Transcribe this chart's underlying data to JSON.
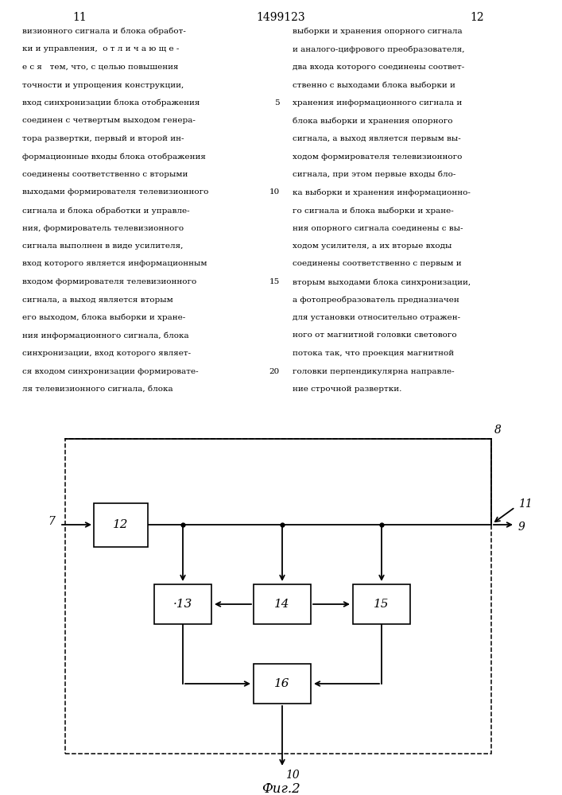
{
  "page_number_center": "1499123",
  "page_number_left": "11",
  "page_number_right": "12",
  "text_left": [
    "визионного сигнала и блока обработ-",
    "ки и управления,  о т л и ч а ю щ е -",
    "е с я   тем, что, с целью повышения",
    "точности и упрощения конструкции,",
    "вход синхронизации блока отображения",
    "соединен с четвертым выходом генера-",
    "тора развертки, первый и второй ин-",
    "формационные входы блока отображения",
    "соединены соответственно с вторыми",
    "выходами формирователя телевизионного",
    "сигнала и блока обработки и управле-",
    "ния, формирователь телевизионного",
    "сигнала выполнен в виде усилителя,",
    "вход которого является информационным",
    "входом формирователя телевизионного",
    "сигнала, а выход является вторым",
    "его выходом, блока выборки и хране-",
    "ния информационного сигнала, блока",
    "синхронизации, вход которого являет-",
    "ся входом синхронизации формировате-",
    "ля телевизионного сигнала, блока"
  ],
  "text_right": [
    "выборки и хранения опорного сигнала",
    "и аналого-цифрового преобразователя,",
    "два входа которого соединены соответ-",
    "ственно с выходами блока выборки и",
    "хранения информационного сигнала и",
    "блока выборки и хранения опорного",
    "сигнала, а выход является первым вы-",
    "ходом формирователя телевизионного",
    "сигнала, при этом первые входы бло-",
    "ка выборки и хранения информационно-",
    "го сигнала и блока выборки и хране-",
    "ния опорного сигнала соединены с вы-",
    "ходом усилителя, а их вторые входы",
    "соединены соответственно с первым и",
    "вторым выходами блока синхронизации,",
    "а фотопреобразователь предназначен",
    "для установки относительно отражен-",
    "ного от магнитной головки светового",
    "потока так, что проекция магнитной",
    "головки перпендикулярна направле-",
    "ние строчной развертки."
  ],
  "line_numbers": [
    5,
    10,
    15,
    20
  ],
  "caption": "Фиг.2",
  "bg_color": "#ffffff",
  "text_color": "#000000",
  "lw_block": 1.2,
  "lw_line": 1.3,
  "block_fontsize": 11,
  "label_fontsize": 10,
  "text_fontsize": 7.5
}
